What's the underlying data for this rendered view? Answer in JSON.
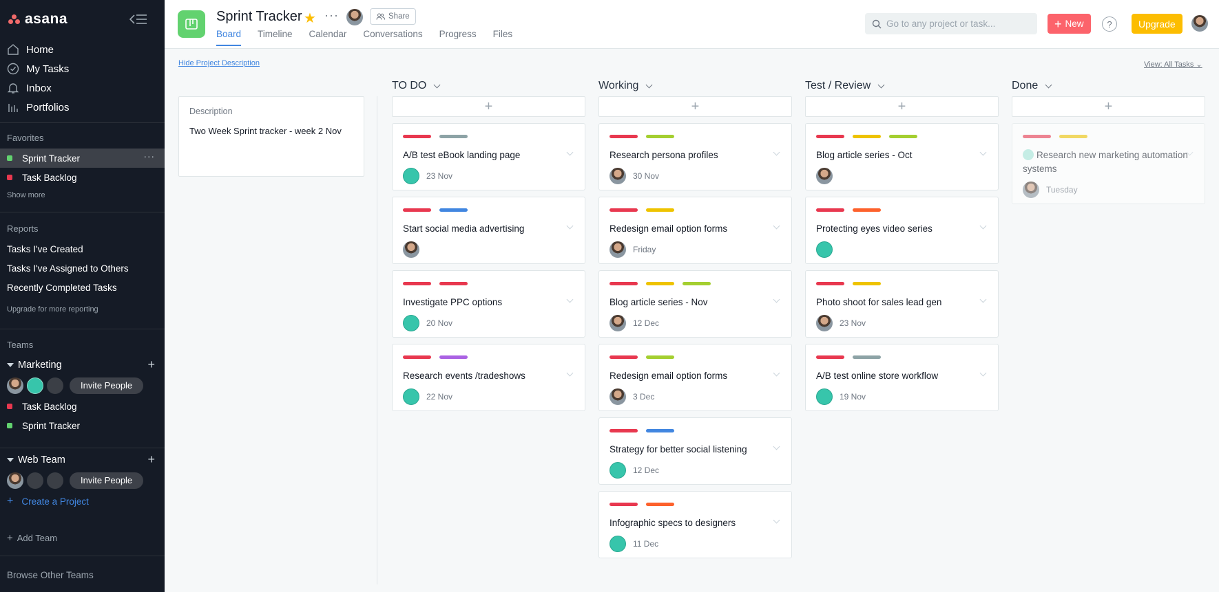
{
  "app": {
    "name": "asana"
  },
  "sidebar": {
    "nav": [
      {
        "label": "Home",
        "icon": "home-icon"
      },
      {
        "label": "My Tasks",
        "icon": "check-circle-icon"
      },
      {
        "label": "Inbox",
        "icon": "bell-icon"
      },
      {
        "label": "Portfolios",
        "icon": "bar-chart-icon"
      }
    ],
    "favorites_heading": "Favorites",
    "favorites": [
      {
        "label": "Sprint Tracker",
        "color": "#62d26f"
      },
      {
        "label": "Task Backlog",
        "color": "#e8384f"
      }
    ],
    "show_more": "Show more",
    "reports_heading": "Reports",
    "reports": [
      "Tasks I've Created",
      "Tasks I've Assigned to Others",
      "Recently Completed Tasks"
    ],
    "upgrade_reporting": "Upgrade for more reporting",
    "teams_heading": "Teams",
    "teams": [
      {
        "name": "Marketing",
        "invite": "Invite People",
        "projects": [
          {
            "label": "Task Backlog",
            "color": "#e8384f"
          },
          {
            "label": "Sprint Tracker",
            "color": "#62d26f"
          }
        ]
      },
      {
        "name": "Web Team",
        "invite": "Invite People"
      }
    ],
    "create_project": "Create a Project",
    "add_team": "Add Team",
    "browse_teams": "Browse Other Teams"
  },
  "header": {
    "project_title": "Sprint Tracker",
    "share": "Share",
    "tabs": [
      "Board",
      "Timeline",
      "Calendar",
      "Conversations",
      "Progress",
      "Files"
    ],
    "active_tab": "Board",
    "search_placeholder": "Go to any project or task...",
    "new_button": "New",
    "help": "?",
    "upgrade_button": "Upgrade"
  },
  "board": {
    "hide_description": "Hide Project Description",
    "view_filter": "View: All Tasks",
    "description": {
      "heading": "Description",
      "text": "Two Week Sprint tracker - week 2 Nov"
    },
    "columns": [
      {
        "title": "TO DO",
        "cards": [
          {
            "title": "A/B test eBook landing page",
            "tags": [
              "#e8384f",
              "#8da3a6"
            ],
            "date": "23 Nov",
            "avatar": "teal"
          },
          {
            "title": "Start social media advertising",
            "tags": [
              "#e8384f",
              "#4186e0"
            ],
            "date": "",
            "avatar": "photo"
          },
          {
            "title": "Investigate PPC options",
            "tags": [
              "#e8384f",
              "#e8384f"
            ],
            "date": "20 Nov",
            "avatar": "teal"
          },
          {
            "title": "Research events /tradeshows",
            "tags": [
              "#e8384f",
              "#aa62e3"
            ],
            "date": "22 Nov",
            "avatar": "teal"
          }
        ]
      },
      {
        "title": "Working",
        "cards": [
          {
            "title": "Research persona profiles",
            "tags": [
              "#e8384f",
              "#a4cf30"
            ],
            "date": "30 Nov",
            "avatar": "photo"
          },
          {
            "title": "Redesign email option forms",
            "tags": [
              "#e8384f",
              "#eec300"
            ],
            "date": "Friday",
            "avatar": "photo"
          },
          {
            "title": "Blog article series - Nov",
            "tags": [
              "#e8384f",
              "#eec300",
              "#a4cf30"
            ],
            "date": "12 Dec",
            "avatar": "photo"
          },
          {
            "title": "Redesign email option forms",
            "tags": [
              "#e8384f",
              "#a4cf30"
            ],
            "date": "3 Dec",
            "avatar": "photo"
          },
          {
            "title": "Strategy for better social listening",
            "tags": [
              "#e8384f",
              "#4186e0"
            ],
            "date": "12 Dec",
            "avatar": "teal"
          },
          {
            "title": "Infographic specs to designers",
            "tags": [
              "#e8384f",
              "#fd612c"
            ],
            "date": "11 Dec",
            "avatar": "teal"
          }
        ]
      },
      {
        "title": "Test / Review",
        "cards": [
          {
            "title": "Blog article series - Oct",
            "tags": [
              "#e8384f",
              "#eec300",
              "#a4cf30"
            ],
            "date": "",
            "avatar": "photo"
          },
          {
            "title": "Protecting eyes video series",
            "tags": [
              "#e8384f",
              "#fd612c"
            ],
            "date": "",
            "avatar": "teal"
          },
          {
            "title": "Photo shoot for sales lead gen",
            "tags": [
              "#e8384f",
              "#eec300"
            ],
            "date": "23 Nov",
            "avatar": "photo"
          },
          {
            "title": "A/B test online store workflow",
            "tags": [
              "#e8384f",
              "#8da3a6"
            ],
            "date": "19 Nov",
            "avatar": "teal"
          }
        ]
      },
      {
        "title": "Done",
        "cards": [
          {
            "title": "Research new marketing automation systems",
            "tags": [
              "#e8384f",
              "#eec300"
            ],
            "date": "Tuesday",
            "avatar": "photo",
            "completed": true
          }
        ]
      }
    ]
  }
}
